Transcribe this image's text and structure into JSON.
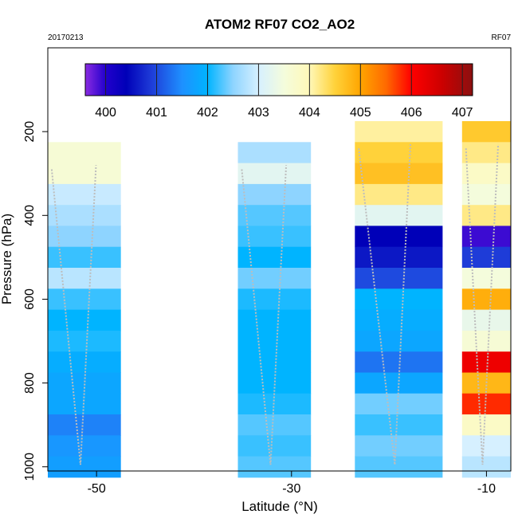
{
  "chart_data": {
    "type": "heatmap",
    "title": "ATOM2 RF07 CO2_AO2",
    "subtitle_left": "20170213",
    "subtitle_right": "RF07",
    "xlabel": "Latitude (°N)",
    "ylabel": "Pressure (hPa)",
    "xlim": [
      -55,
      -7.5
    ],
    "ylim": [
      1010,
      0
    ],
    "x_ticks": [
      -50,
      -30,
      -10
    ],
    "y_ticks": [
      200,
      400,
      600,
      800,
      1000
    ],
    "colorbar": {
      "min": 399.6,
      "max": 407.2,
      "ticks": [
        400,
        401,
        402,
        403,
        404,
        405,
        406,
        407
      ],
      "stops": [
        [
          399.6,
          "#8a2be2"
        ],
        [
          400.0,
          "#2200cc"
        ],
        [
          400.4,
          "#0000b8"
        ],
        [
          400.9,
          "#1e3cd8"
        ],
        [
          401.5,
          "#1e90ff"
        ],
        [
          402.0,
          "#00b4ff"
        ],
        [
          402.5,
          "#8ed4ff"
        ],
        [
          403.0,
          "#d6f0ff"
        ],
        [
          403.5,
          "#f4fcdc"
        ],
        [
          404.0,
          "#fff8b8"
        ],
        [
          404.5,
          "#ffd23a"
        ],
        [
          405.0,
          "#ffa500"
        ],
        [
          405.5,
          "#ff6a00"
        ],
        [
          406.0,
          "#ff0000"
        ],
        [
          406.6,
          "#cc0000"
        ],
        [
          407.2,
          "#8b1010"
        ]
      ]
    },
    "profiles": [
      {
        "name": "P1",
        "lat_range": [
          -55,
          -47.5
        ],
        "levels": [
          {
            "p": 250,
            "v": 403.6
          },
          {
            "p": 300,
            "v": 403.6
          },
          {
            "p": 350,
            "v": 402.9
          },
          {
            "p": 400,
            "v": 402.7
          },
          {
            "p": 450,
            "v": 402.5
          },
          {
            "p": 500,
            "v": 402.2
          },
          {
            "p": 550,
            "v": 402.8
          },
          {
            "p": 600,
            "v": 402.2
          },
          {
            "p": 650,
            "v": 402.0
          },
          {
            "p": 700,
            "v": 402.1
          },
          {
            "p": 750,
            "v": 401.9
          },
          {
            "p": 800,
            "v": 401.8
          },
          {
            "p": 850,
            "v": 401.8
          },
          {
            "p": 900,
            "v": 401.4
          },
          {
            "p": 950,
            "v": 401.6
          },
          {
            "p": 1000,
            "v": 401.7
          }
        ]
      },
      {
        "name": "P2",
        "lat_range": [
          -35.5,
          -28
        ],
        "levels": [
          {
            "p": 250,
            "v": 402.7
          },
          {
            "p": 300,
            "v": 403.2
          },
          {
            "p": 350,
            "v": 402.5
          },
          {
            "p": 400,
            "v": 402.3
          },
          {
            "p": 450,
            "v": 402.2
          },
          {
            "p": 500,
            "v": 402.0
          },
          {
            "p": 550,
            "v": 402.4
          },
          {
            "p": 600,
            "v": 402.1
          },
          {
            "p": 650,
            "v": 402.0
          },
          {
            "p": 700,
            "v": 402.0
          },
          {
            "p": 750,
            "v": 402.0
          },
          {
            "p": 800,
            "v": 402.0
          },
          {
            "p": 850,
            "v": 402.1
          },
          {
            "p": 900,
            "v": 402.3
          },
          {
            "p": 950,
            "v": 402.2
          },
          {
            "p": 1000,
            "v": 402.3
          }
        ]
      },
      {
        "name": "P3",
        "lat_range": [
          -23.5,
          -14.5
        ],
        "levels": [
          {
            "p": 200,
            "v": 404.1
          },
          {
            "p": 250,
            "v": 404.5
          },
          {
            "p": 300,
            "v": 404.7
          },
          {
            "p": 350,
            "v": 404.2
          },
          {
            "p": 400,
            "v": 403.2
          },
          {
            "p": 450,
            "v": 400.4
          },
          {
            "p": 500,
            "v": 400.6
          },
          {
            "p": 550,
            "v": 401.0
          },
          {
            "p": 600,
            "v": 402.0
          },
          {
            "p": 650,
            "v": 401.9
          },
          {
            "p": 700,
            "v": 401.8
          },
          {
            "p": 750,
            "v": 401.3
          },
          {
            "p": 800,
            "v": 401.8
          },
          {
            "p": 850,
            "v": 402.4
          },
          {
            "p": 900,
            "v": 402.2
          },
          {
            "p": 950,
            "v": 402.4
          },
          {
            "p": 1000,
            "v": 402.3
          }
        ]
      },
      {
        "name": "P4",
        "lat_range": [
          -12.5,
          -7.5
        ],
        "levels": [
          {
            "p": 200,
            "v": 404.6
          },
          {
            "p": 250,
            "v": 404.2
          },
          {
            "p": 300,
            "v": 403.8
          },
          {
            "p": 350,
            "v": 403.5
          },
          {
            "p": 400,
            "v": 404.2
          },
          {
            "p": 450,
            "v": 399.9
          },
          {
            "p": 500,
            "v": 400.9
          },
          {
            "p": 550,
            "v": 403.5
          },
          {
            "p": 600,
            "v": 404.9
          },
          {
            "p": 650,
            "v": 403.3
          },
          {
            "p": 700,
            "v": 403.6
          },
          {
            "p": 750,
            "v": 406.2
          },
          {
            "p": 800,
            "v": 404.8
          },
          {
            "p": 850,
            "v": 405.8
          },
          {
            "p": 900,
            "v": 403.8
          },
          {
            "p": 950,
            "v": 403.0
          },
          {
            "p": 1000,
            "v": 402.8
          }
        ]
      }
    ]
  }
}
